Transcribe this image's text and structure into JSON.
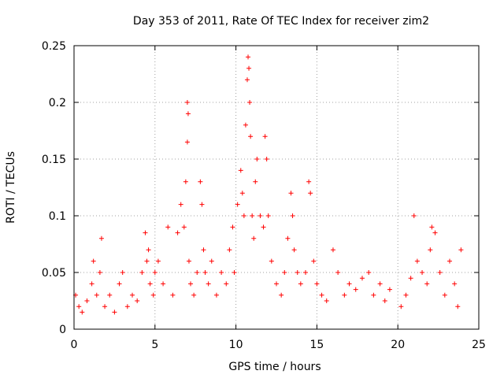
{
  "chart_data": {
    "type": "scatter",
    "title": "Day 353 of 2011, Rate Of TEC Index for receiver zim2",
    "xlabel": "GPS time / hours",
    "ylabel": "ROTI / TECUs",
    "xlim": [
      0,
      25
    ],
    "ylim": [
      0,
      0.25
    ],
    "x_ticks": [
      0,
      5,
      10,
      15,
      20,
      25
    ],
    "y_ticks": [
      0,
      0.05,
      0.1,
      0.15,
      0.2,
      0.25
    ],
    "x_tick_labels": [
      "0",
      "5",
      "10",
      "15",
      "20",
      "25"
    ],
    "y_tick_labels": [
      "0",
      "0.05",
      "0.1",
      "0.15",
      "0.2",
      "0.25"
    ],
    "grid": true,
    "marker": "plus",
    "color": "#ff0000",
    "series": [
      {
        "x": [
          0.1,
          0.3,
          0.5,
          0.8,
          1.1,
          1.2,
          1.4,
          1.6,
          1.7,
          1.9,
          2.2,
          2.5,
          2.8,
          3.0,
          3.3,
          3.6,
          3.9,
          4.2,
          4.4,
          4.5,
          4.6,
          4.7,
          4.9,
          5.0,
          5.2,
          5.5,
          5.8,
          6.1,
          6.4,
          6.6,
          6.8,
          6.9,
          7.0,
          7.0,
          7.05,
          7.1,
          7.2,
          7.4,
          7.6,
          7.8,
          7.9,
          8.0,
          8.1,
          8.3,
          8.5,
          8.8,
          9.1,
          9.4,
          9.6,
          9.8,
          9.9,
          10.1,
          10.3,
          10.4,
          10.5,
          10.6,
          10.7,
          10.75,
          10.8,
          10.85,
          10.9,
          11.0,
          11.1,
          11.2,
          11.3,
          11.5,
          11.7,
          11.8,
          11.9,
          12.0,
          12.2,
          12.5,
          12.8,
          13.0,
          13.2,
          13.4,
          13.5,
          13.6,
          13.8,
          14.0,
          14.3,
          14.5,
          14.6,
          14.8,
          15.0,
          15.3,
          15.6,
          16.0,
          16.3,
          16.7,
          17.0,
          17.4,
          17.8,
          18.2,
          18.5,
          18.9,
          19.2,
          19.5,
          20.2,
          20.5,
          20.8,
          21.0,
          21.2,
          21.5,
          21.8,
          22.0,
          22.1,
          22.3,
          22.6,
          22.9,
          23.2,
          23.5,
          23.7,
          23.9
        ],
        "y": [
          0.03,
          0.02,
          0.015,
          0.025,
          0.04,
          0.06,
          0.03,
          0.05,
          0.08,
          0.02,
          0.03,
          0.015,
          0.04,
          0.05,
          0.02,
          0.03,
          0.025,
          0.05,
          0.085,
          0.06,
          0.07,
          0.04,
          0.03,
          0.05,
          0.06,
          0.04,
          0.09,
          0.03,
          0.085,
          0.11,
          0.09,
          0.13,
          0.2,
          0.165,
          0.19,
          0.06,
          0.04,
          0.03,
          0.05,
          0.13,
          0.11,
          0.07,
          0.05,
          0.04,
          0.06,
          0.03,
          0.05,
          0.04,
          0.07,
          0.09,
          0.05,
          0.11,
          0.14,
          0.12,
          0.1,
          0.18,
          0.22,
          0.24,
          0.23,
          0.2,
          0.17,
          0.1,
          0.08,
          0.13,
          0.15,
          0.1,
          0.09,
          0.17,
          0.15,
          0.1,
          0.06,
          0.04,
          0.03,
          0.05,
          0.08,
          0.12,
          0.1,
          0.07,
          0.05,
          0.04,
          0.05,
          0.13,
          0.12,
          0.06,
          0.04,
          0.03,
          0.025,
          0.07,
          0.05,
          0.03,
          0.04,
          0.035,
          0.045,
          0.05,
          0.03,
          0.04,
          0.025,
          0.035,
          0.02,
          0.03,
          0.045,
          0.1,
          0.06,
          0.05,
          0.04,
          0.07,
          0.09,
          0.085,
          0.05,
          0.03,
          0.06,
          0.04,
          0.02,
          0.07
        ]
      }
    ]
  }
}
